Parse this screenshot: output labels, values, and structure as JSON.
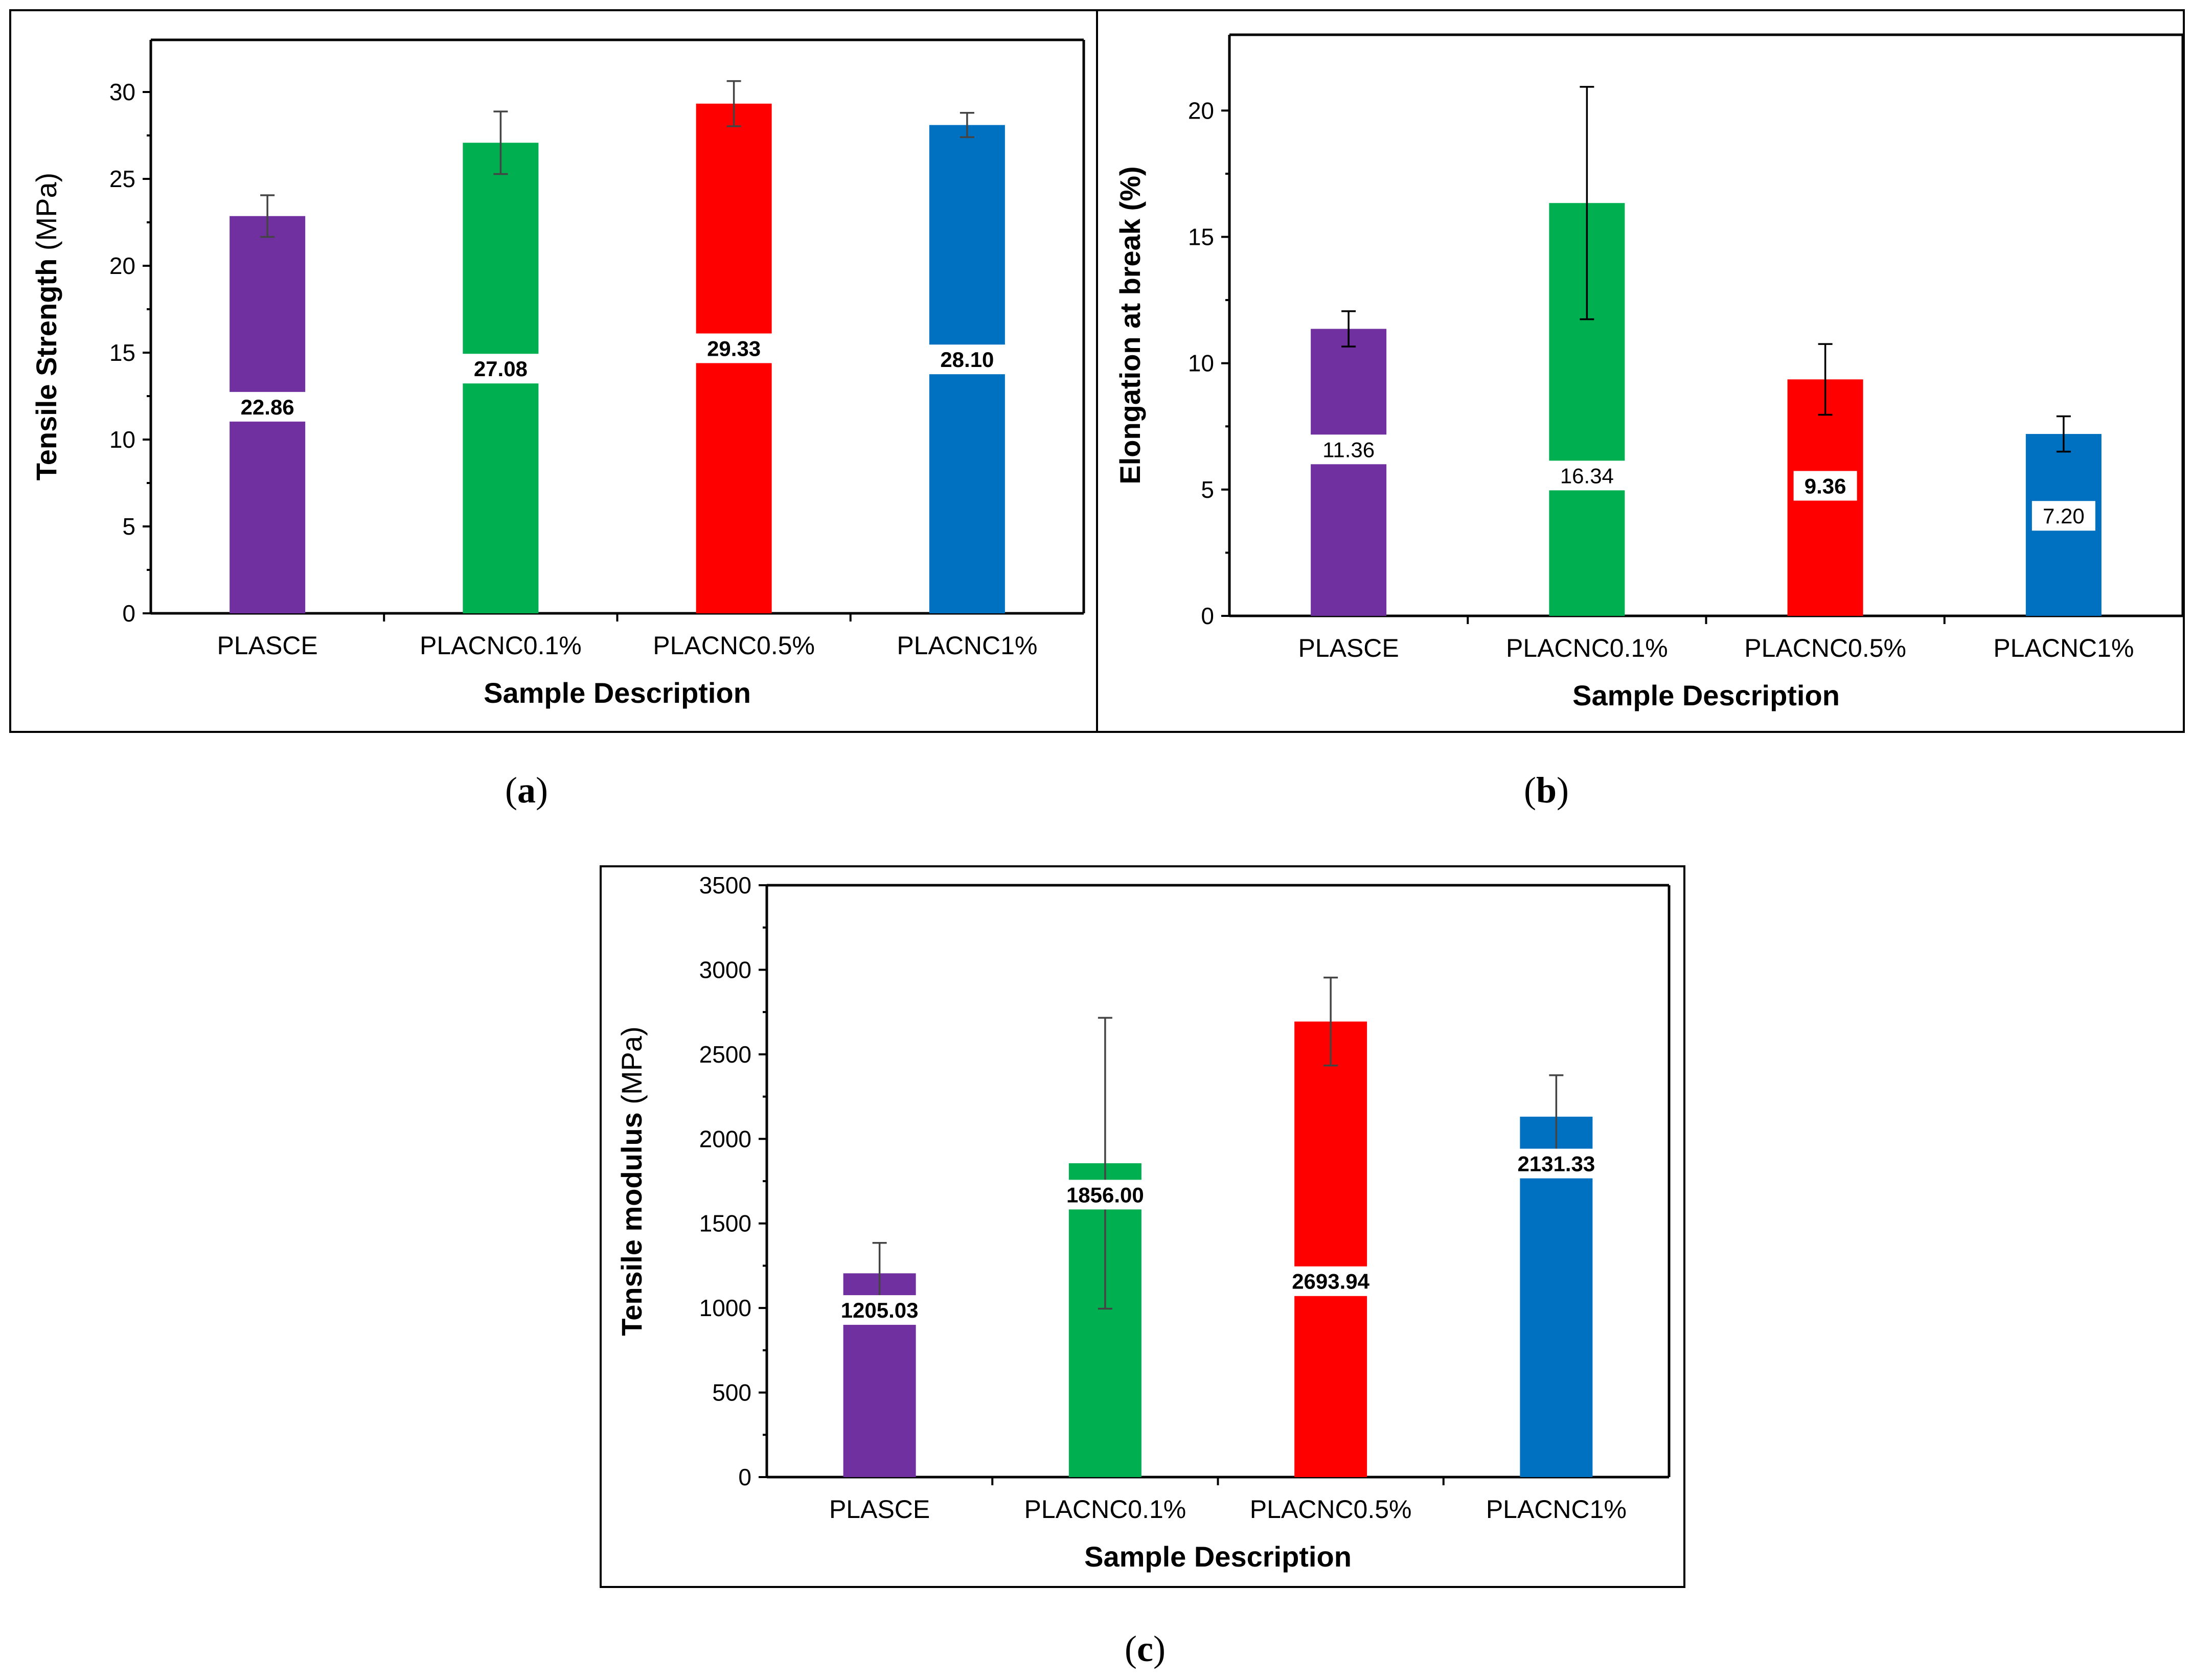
{
  "chart_data": [
    {
      "panel": "a",
      "type": "bar",
      "title": "",
      "caption": "(a)",
      "xlabel": "Sample Description",
      "ylabel": "Tensile Strength (MPa)",
      "ylabel_main": "Tensile Strength",
      "ylabel_unit": "(MPa)",
      "ylim": [
        0,
        33
      ],
      "yticks": [
        0,
        5,
        10,
        15,
        20,
        25,
        30
      ],
      "categories": [
        "PLASCE",
        "PLACNC0.1%",
        "PLACNC0.5%",
        "PLACNC1%"
      ],
      "values": [
        22.86,
        27.08,
        29.33,
        28.1
      ],
      "value_labels": [
        "22.86",
        "27.08",
        "29.33",
        "28.10"
      ],
      "errors": [
        1.2,
        1.8,
        1.3,
        0.7
      ],
      "colors": [
        "#7030A0",
        "#00B050",
        "#FF0000",
        "#0070C0"
      ],
      "grid": false
    },
    {
      "panel": "b",
      "type": "bar",
      "title": "",
      "caption": "(b)",
      "xlabel": "Sample Description",
      "ylabel": "Elongation at break (%)",
      "ylim": [
        0,
        23
      ],
      "yticks": [
        0,
        5,
        10,
        15,
        20
      ],
      "categories": [
        "PLASCE",
        "PLACNC0.1%",
        "PLACNC0.5%",
        "PLACNC1%"
      ],
      "values": [
        11.36,
        16.34,
        9.36,
        7.2
      ],
      "value_labels": [
        "11.36",
        "16.34",
        "9.36",
        "7.20"
      ],
      "errors": [
        0.7,
        4.6,
        1.4,
        0.7
      ],
      "colors": [
        "#7030A0",
        "#00B050",
        "#FF0000",
        "#0070C0"
      ],
      "grid": false
    },
    {
      "panel": "c",
      "type": "bar",
      "title": "",
      "caption": "(c)",
      "xlabel": "Sample Description",
      "ylabel": "Tensile modulus (MPa)",
      "ylabel_main": "Tensile modulus",
      "ylabel_unit": "(MPa)",
      "ylim": [
        0,
        3500
      ],
      "yticks": [
        0,
        500,
        1000,
        1500,
        2000,
        2500,
        3000,
        3500
      ],
      "categories": [
        "PLASCE",
        "PLACNC0.1%",
        "PLACNC0.5%",
        "PLACNC1%"
      ],
      "values": [
        1205.03,
        1856.0,
        2693.94,
        2131.33
      ],
      "value_labels": [
        "1205.03",
        "1856.00",
        "2693.94",
        "2131.33"
      ],
      "errors": [
        180,
        860,
        260,
        245
      ],
      "colors": [
        "#7030A0",
        "#00B050",
        "#FF0000",
        "#0070C0"
      ],
      "grid": false
    }
  ]
}
